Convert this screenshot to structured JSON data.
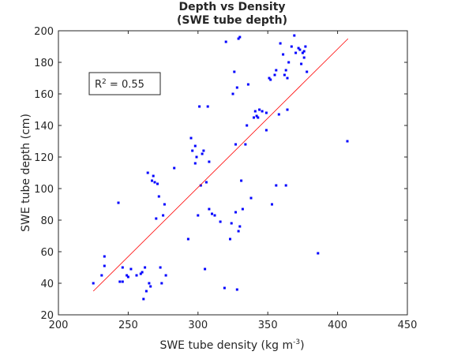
{
  "chart_data": {
    "type": "scatter",
    "title": [
      "Depth vs Density",
      "(SWE tube depth)"
    ],
    "xlabel": "SWE tube density (kg m",
    "xlabel_sup": "-3",
    "xlabel_end": ")",
    "ylabel": "SWE tube depth (cm)",
    "xlim": [
      200,
      450
    ],
    "ylim": [
      20,
      200
    ],
    "xticks": [
      200,
      250,
      300,
      350,
      400,
      450
    ],
    "yticks": [
      20,
      40,
      60,
      80,
      100,
      120,
      140,
      160,
      180,
      200
    ],
    "grid": false,
    "annotation": {
      "prefix": "R",
      "sup": "2",
      "suffix": " = 0.55"
    },
    "colors": {
      "points": "#0000ff",
      "fit": "#ff0000",
      "axes": "#262626"
    },
    "fit_line": {
      "x": [
        225,
        407.5
      ],
      "y": [
        35,
        195
      ]
    },
    "series": [
      {
        "kind": "points",
        "x": [
          225,
          231,
          233,
          233,
          243,
          244,
          246,
          246,
          249,
          250,
          252,
          256,
          259,
          260,
          261,
          262,
          263,
          264,
          265,
          266,
          267,
          268,
          269,
          270,
          271,
          272,
          273,
          274,
          275,
          276,
          277,
          283,
          293,
          295,
          296,
          298,
          298,
          299,
          300,
          301,
          302,
          303,
          304,
          305,
          306,
          307,
          308,
          308,
          310,
          312,
          316,
          319,
          320,
          323,
          324,
          325,
          326,
          327,
          327,
          328,
          328,
          329,
          329,
          330,
          330,
          331,
          332,
          334,
          335,
          336,
          338,
          340,
          341,
          342,
          343,
          344,
          346,
          349,
          349,
          351,
          352,
          353,
          355,
          356,
          356,
          358,
          359,
          361,
          362,
          363,
          363,
          364,
          364,
          365,
          367,
          369,
          370,
          372,
          373,
          374,
          375,
          376,
          376,
          377,
          378,
          386,
          407
        ],
        "y": [
          40,
          45,
          57,
          51,
          91,
          41,
          41,
          50,
          45,
          44,
          49,
          45,
          46,
          47,
          30,
          50,
          35,
          110,
          40,
          38,
          105,
          108,
          104,
          81,
          103,
          95,
          50,
          40,
          83,
          90,
          45,
          113,
          68,
          132,
          124,
          116,
          127,
          120,
          83,
          152,
          102,
          122,
          124,
          49,
          104,
          152,
          117,
          87,
          84,
          83,
          79,
          37,
          193,
          68,
          78,
          160,
          174,
          85,
          128,
          36,
          164,
          73,
          195,
          76,
          196,
          105,
          87,
          128,
          140,
          166,
          94,
          145,
          149,
          146,
          145,
          150,
          149,
          137,
          148,
          170,
          169,
          90,
          172,
          102,
          175,
          147,
          192,
          185,
          172,
          175,
          102,
          170,
          150,
          180,
          190,
          197,
          186,
          189,
          188,
          179,
          186,
          187,
          183,
          190,
          174,
          59,
          130
        ]
      }
    ]
  }
}
